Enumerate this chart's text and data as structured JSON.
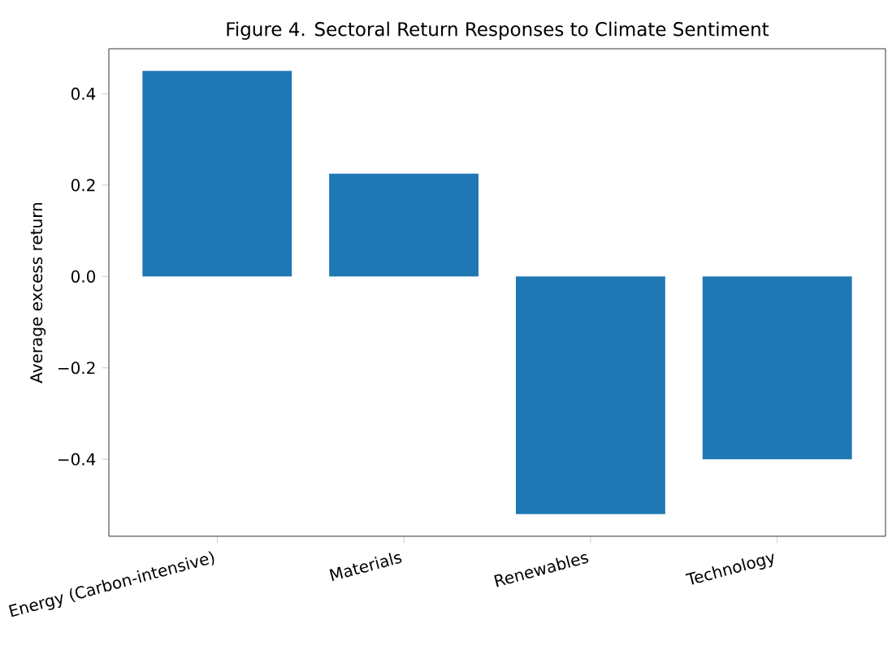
{
  "chart_data": {
    "type": "bar",
    "title": "Figure 4. Sectoral Return Responses to Climate Sentiment",
    "ylabel": "Average excess return",
    "categories": [
      "Energy (Carbon-intensive)",
      "Materials",
      "Renewables",
      "Technology"
    ],
    "values": [
      0.45,
      0.225,
      -0.52,
      -0.4
    ],
    "color": "#1f77b4",
    "ylim": [
      -0.5685,
      0.4985
    ],
    "yticks": [
      {
        "value": -0.4,
        "label": "−0.4"
      },
      {
        "value": -0.2,
        "label": "−0.2"
      },
      {
        "value": 0.0,
        "label": "0.0"
      },
      {
        "value": 0.2,
        "label": "0.2"
      },
      {
        "value": 0.4,
        "label": "0.4"
      }
    ],
    "grid": false
  }
}
